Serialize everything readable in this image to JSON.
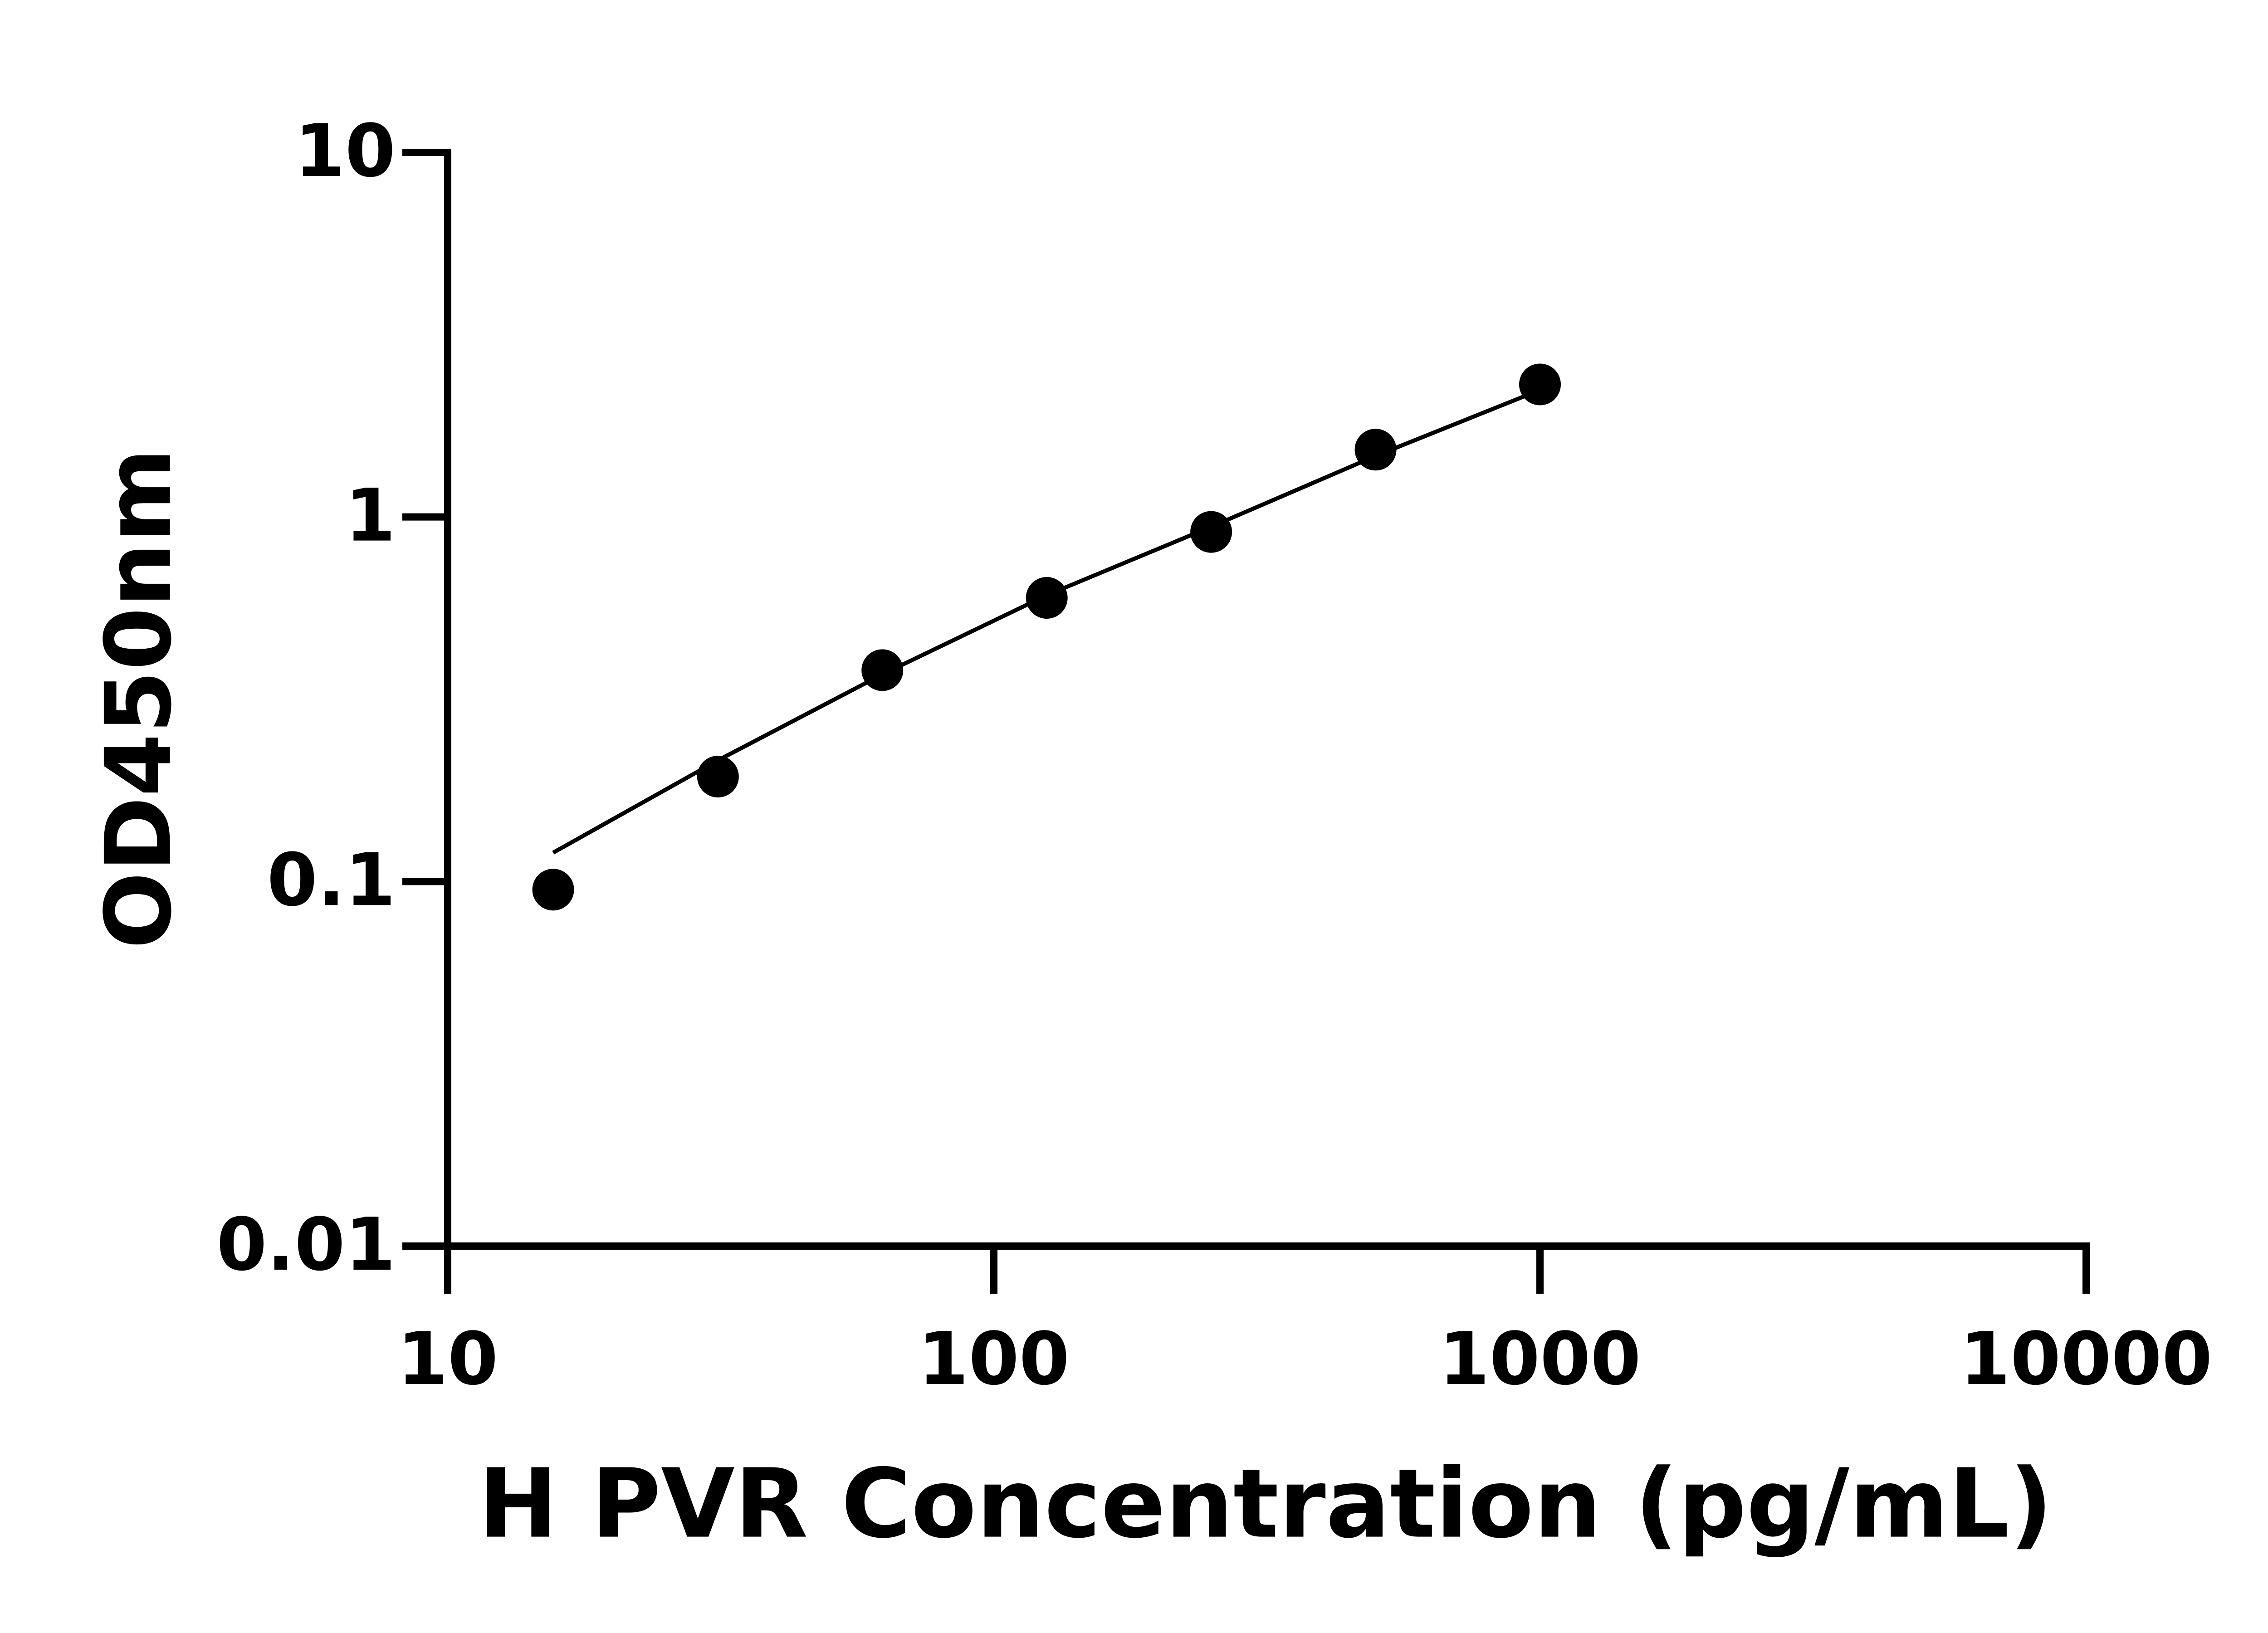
{
  "chart_data": {
    "type": "scatter",
    "x_label": "H PVR Concentration (pg/mL)",
    "y_label": "OD450nm",
    "x": [
      15.6,
      31.25,
      62.5,
      125,
      250,
      500,
      1000
    ],
    "series": [
      {
        "mode": "markers",
        "color": "#000000",
        "values": [
          0.095,
          0.194,
          0.38,
          0.6,
          0.91,
          1.53,
          2.31
        ]
      },
      {
        "mode": "line",
        "color": "#000000",
        "values": [
          0.12,
          0.215,
          0.37,
          0.61,
          0.94,
          1.47,
          2.23
        ]
      }
    ],
    "xlim": [
      10,
      10000
    ],
    "xticks": [
      10,
      100,
      1000,
      10000
    ],
    "ylim": [
      0.01,
      10
    ],
    "yticks": [
      0.01,
      0.1,
      1,
      10
    ],
    "x_log": true,
    "y_log": true,
    "grid": false
  }
}
